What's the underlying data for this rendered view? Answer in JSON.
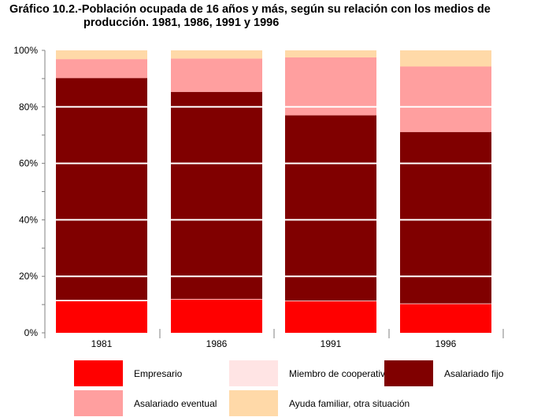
{
  "title_line1": "Gráfico 10.2.-Población ocupada de 16 años y más, según su relación con los medios de",
  "title_line2": "producción. 1981, 1986, 1991 y 1996",
  "chart_data": {
    "type": "bar",
    "stacked": true,
    "title": "Gráfico 10.2.-Población ocupada de 16 años y más, según su relación con los medios de producción. 1981, 1986, 1991 y 1996",
    "categories": [
      "1981",
      "1986",
      "1991",
      "1996"
    ],
    "y_ticks": [
      "0%",
      "20%",
      "40%",
      "60%",
      "80%",
      "100%"
    ],
    "ylim": [
      0,
      100
    ],
    "grid": false,
    "legend_position": "bottom",
    "series": [
      {
        "name": "Empresario",
        "color": "#ff0000",
        "values": [
          11.2,
          11.8,
          11.2,
          10.2
        ]
      },
      {
        "name": "Miembro de cooperativa",
        "color": "#ffe4e4",
        "values": [
          0.5,
          0.2,
          0.2,
          0.2
        ]
      },
      {
        "name": "Asalariado fijo",
        "color": "#800000",
        "values": [
          78.5,
          73.3,
          65.6,
          60.7
        ]
      },
      {
        "name": "Asalariado eventual",
        "color": "#ff9f9f",
        "values": [
          6.7,
          11.8,
          20.5,
          23.2
        ]
      },
      {
        "name": "Ayuda familiar, otra situación",
        "color": "#ffd9a8",
        "values": [
          3.1,
          2.9,
          2.5,
          5.7
        ]
      }
    ]
  }
}
